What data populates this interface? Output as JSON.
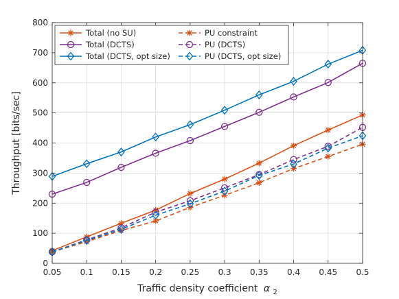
{
  "chart_data": {
    "type": "line",
    "xlabel": "Traffic density coefficient",
    "xlabel_symbol": "α",
    "xlabel_subscript": "2",
    "ylabel": "Throughput [bits/sec]",
    "xlim": [
      0.05,
      0.5
    ],
    "ylim": [
      0,
      800
    ],
    "grid": true,
    "legend_placement": "top-left",
    "x": [
      0.05,
      0.1,
      0.15,
      0.2,
      0.25,
      0.3,
      0.35,
      0.4,
      0.45,
      0.5
    ],
    "x_tick_labels": [
      "0.05",
      "0.1",
      "0.15",
      "0.2",
      "0.25",
      "0.3",
      "0.35",
      "0.4",
      "0.45",
      "0.5"
    ],
    "y_ticks": [
      0,
      100,
      200,
      300,
      400,
      500,
      600,
      700,
      800
    ],
    "series": [
      {
        "name": "Total (no SU)",
        "color": "#D95319",
        "line": "solid",
        "marker": "asterisk",
        "values": [
          42,
          88,
          133,
          177,
          232,
          280,
          333,
          391,
          443,
          493
        ]
      },
      {
        "name": "Total (DCTS)",
        "color": "#7E2F8E",
        "line": "solid",
        "marker": "circle",
        "values": [
          230,
          269,
          319,
          366,
          408,
          455,
          502,
          553,
          601,
          665
        ]
      },
      {
        "name": "Total (DCTS, opt size)",
        "color": "#0072BD",
        "line": "solid",
        "marker": "diamond",
        "values": [
          289,
          331,
          370,
          420,
          461,
          509,
          560,
          605,
          662,
          708
        ]
      },
      {
        "name": "PU constraint",
        "color": "#D95319",
        "line": "dashed",
        "marker": "asterisk",
        "values": [
          38,
          72,
          109,
          141,
          186,
          226,
          268,
          315,
          355,
          396
        ]
      },
      {
        "name": "PU (DCTS)",
        "color": "#7E2F8E",
        "line": "dashed",
        "marker": "circle",
        "values": [
          38,
          78,
          118,
          170,
          208,
          251,
          295,
          345,
          389,
          452
        ]
      },
      {
        "name": "PU (DCTS, opt size)",
        "color": "#0072BD",
        "line": "dashed",
        "marker": "diamond",
        "values": [
          38,
          76,
          113,
          160,
          198,
          240,
          292,
          330,
          383,
          424
        ]
      }
    ]
  }
}
